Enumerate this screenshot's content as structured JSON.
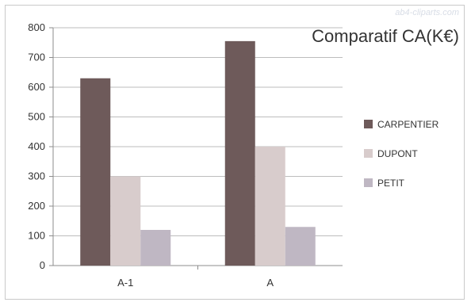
{
  "watermark": "ab4-cliparts.com",
  "chart_data": {
    "type": "bar",
    "title": "Comparatif CA(K€)",
    "xlabel": "",
    "ylabel": "",
    "categories": [
      "A-1",
      "A"
    ],
    "ylim": [
      0,
      800
    ],
    "yticks": [
      0,
      100,
      200,
      300,
      400,
      500,
      600,
      700,
      800
    ],
    "grid": true,
    "legend_position": "right",
    "series": [
      {
        "name": "CARPENTIER",
        "values": [
          630,
          755
        ],
        "color": "#6e5a5a"
      },
      {
        "name": "DUPONT",
        "values": [
          300,
          400
        ],
        "color": "#d8cccc"
      },
      {
        "name": "PETIT",
        "values": [
          120,
          130
        ],
        "color": "#bfb7c3"
      }
    ]
  }
}
